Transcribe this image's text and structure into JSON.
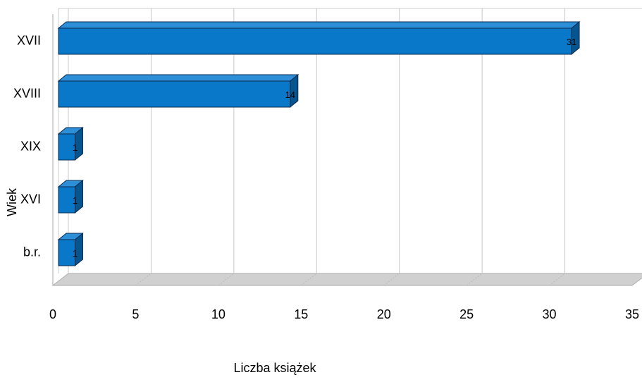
{
  "chart_data": {
    "type": "bar",
    "orientation": "horizontal",
    "categories": [
      "XVII",
      "XVIII",
      "XIX",
      "XVI",
      "b.r."
    ],
    "values": [
      31,
      14,
      1,
      1,
      1
    ],
    "color": "#0a78c8",
    "xlim": [
      0,
      35
    ],
    "xticks": [
      0,
      5,
      10,
      15,
      20,
      25,
      30,
      35
    ],
    "xlabel": "Liczba książek",
    "ylabel": "Wiek",
    "grid": true
  }
}
